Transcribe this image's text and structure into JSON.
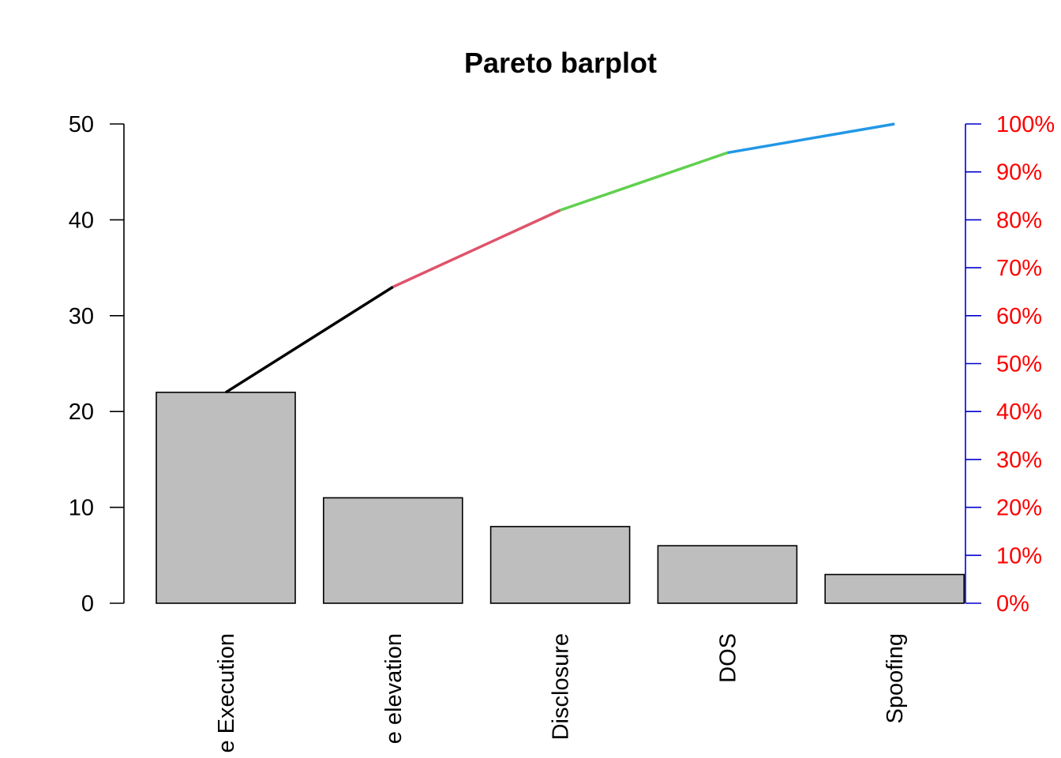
{
  "chart_data": {
    "type": "bar",
    "title": "Pareto barplot",
    "xlabel": "",
    "ylabel": "",
    "categories": [
      "e Execution",
      "e elevation",
      "Disclosure",
      "DOS",
      "Spoofing"
    ],
    "values": [
      22,
      11,
      8,
      6,
      3
    ],
    "ylim": [
      0,
      50
    ],
    "yticks": [
      "0",
      "10",
      "20",
      "30",
      "40",
      "50"
    ],
    "cumulative": [
      22,
      33,
      41,
      47,
      50
    ],
    "right_axis": {
      "ticks": [
        "0%",
        "10%",
        "20%",
        "30%",
        "40%",
        "50%",
        "60%",
        "70%",
        "80%",
        "90%",
        "100%"
      ],
      "axis_color": "#0000CD",
      "label_color": "#FF0000"
    },
    "bar_fill": "#BEBEBE",
    "line_segment_colors": [
      "#000000",
      "#DF536B",
      "#61D04F",
      "#2297E6"
    ]
  }
}
